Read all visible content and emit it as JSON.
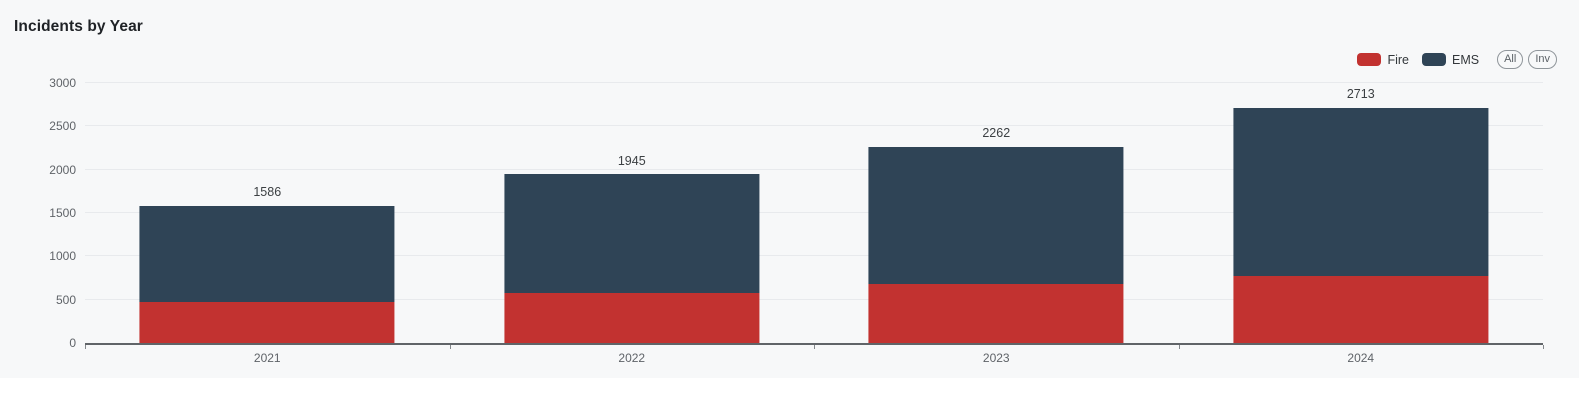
{
  "title": "Incidents by Year",
  "colors": {
    "fire": "#c23230",
    "ems": "#2f4456",
    "card_background": "#f7f8f9",
    "grid": "#e8eaed",
    "axis": "#606468",
    "tick_text": "#5f6368",
    "label_text": "#3c4043"
  },
  "legend": {
    "items": [
      {
        "label": "Fire",
        "color_key": "fire"
      },
      {
        "label": "EMS",
        "color_key": "ems"
      }
    ],
    "toggles": [
      {
        "label": "All"
      },
      {
        "label": "Inv"
      }
    ]
  },
  "chart_data": {
    "type": "bar",
    "stacked": true,
    "title": "Incidents by Year",
    "xlabel": "",
    "ylabel": "",
    "categories": [
      "2021",
      "2022",
      "2023",
      "2024"
    ],
    "series": [
      {
        "name": "Fire",
        "color": "#c23230",
        "values": [
          475,
          580,
          680,
          775
        ]
      },
      {
        "name": "EMS",
        "color": "#2f4456",
        "values": [
          1111,
          1365,
          1582,
          1938
        ]
      }
    ],
    "totals": [
      1586,
      1945,
      2262,
      2713
    ],
    "total_labels_shown": true,
    "ylim": [
      0,
      3000
    ],
    "yticks": [
      0,
      500,
      1000,
      1500,
      2000,
      2500,
      3000
    ],
    "grid": true,
    "legend_position": "top-right"
  }
}
